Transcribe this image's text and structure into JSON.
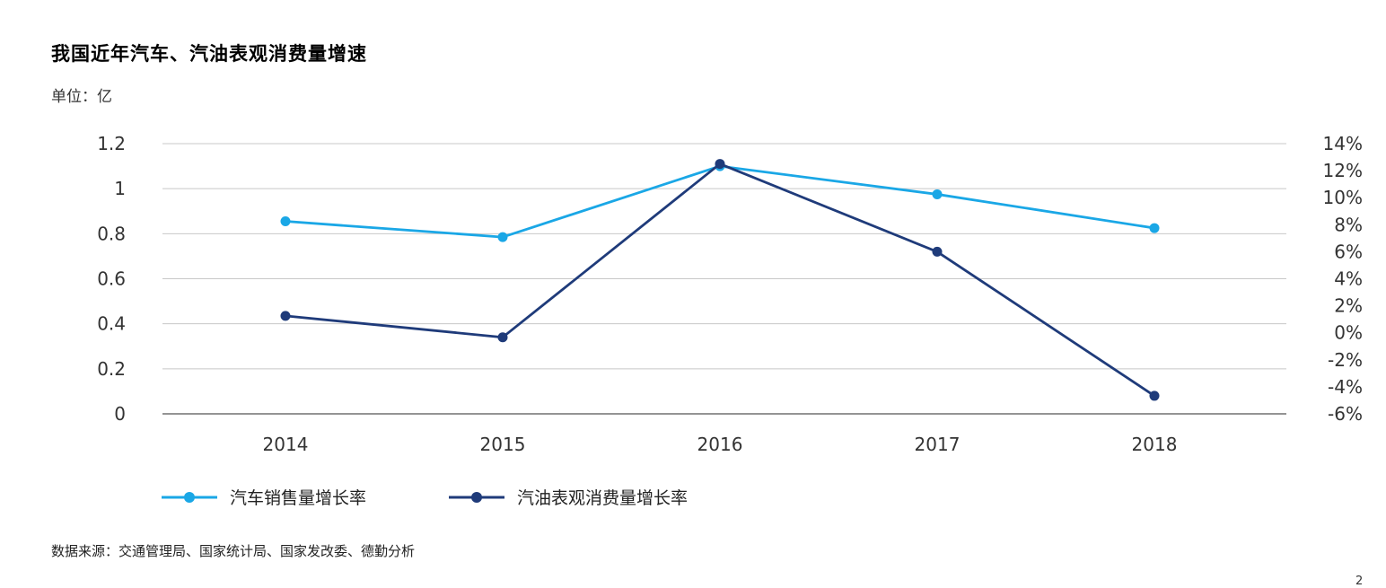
{
  "title": "我国近年汽车、汽油表观消费量增速",
  "unit_label": "单位：亿",
  "source": "数据来源：交通管理局、国家统计局、国家发改委、德勤分析",
  "page_number": "2",
  "chart_data": {
    "type": "line",
    "title": "我国近年汽车、汽油表观消费量增速",
    "categories": [
      "2014",
      "2015",
      "2016",
      "2017",
      "2018"
    ],
    "y_left": {
      "ticks": [
        "0",
        "0.2",
        "0.4",
        "0.6",
        "0.8",
        "1",
        "1.2"
      ],
      "ylim": [
        0,
        1.2
      ]
    },
    "y_right": {
      "ticks": [
        "-6%",
        "-4%",
        "-2%",
        "0%",
        "2%",
        "4%",
        "6%",
        "8%",
        "10%",
        "12%",
        "14%"
      ],
      "ylim": [
        -6,
        14
      ]
    },
    "grid": true,
    "legend_position": "bottom-left",
    "series": [
      {
        "name": "汽车销售量增长率",
        "axis": "left",
        "color": "#1aa7e6",
        "values": [
          0.855,
          0.785,
          1.1,
          0.975,
          0.825
        ]
      },
      {
        "name": "汽油表观消费量增长率",
        "axis": "left",
        "color": "#1f3b7a",
        "values": [
          0.435,
          0.34,
          1.11,
          0.72,
          0.08
        ]
      }
    ]
  }
}
